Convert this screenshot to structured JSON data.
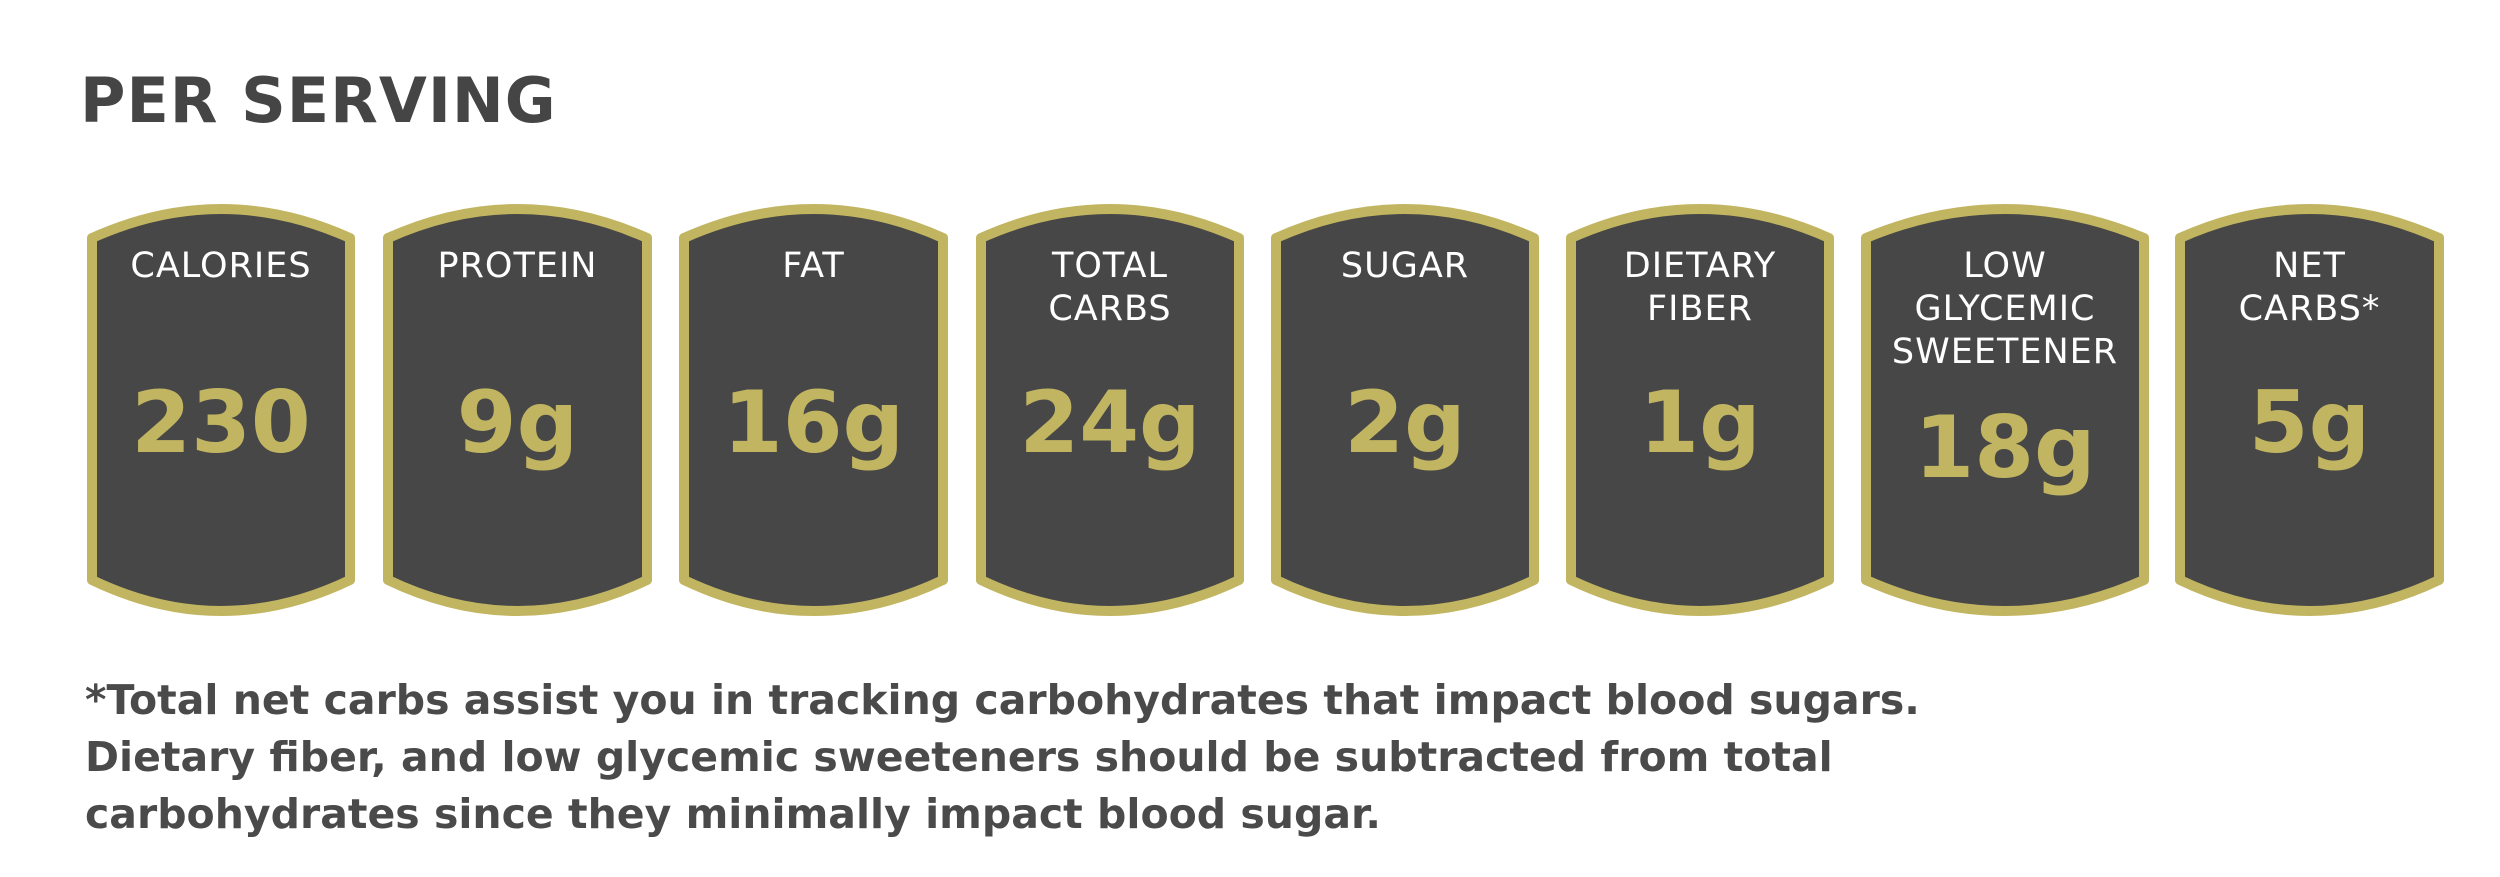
{
  "heading": "PER SERVING",
  "colors": {
    "tile_fill": "#474747",
    "tile_border": "#c2b561",
    "value_text": "#c2b561",
    "label_text": "#ffffff",
    "heading_text": "#454545"
  },
  "tiles": [
    {
      "label": "CALORIES",
      "value": "230"
    },
    {
      "label": "PROTEIN",
      "value": "9g"
    },
    {
      "label": "FAT",
      "value": "16g"
    },
    {
      "label": "TOTAL\nCARBS",
      "value": "24g"
    },
    {
      "label": "SUGAR",
      "value": "2g"
    },
    {
      "label": "DIETARY\nFIBER",
      "value": "1g"
    },
    {
      "label": "LOW\nGLYCEMIC\nSWEETENER",
      "value": "18g"
    },
    {
      "label": "NET\nCARBS*",
      "value": "5g"
    }
  ],
  "footnote": {
    "line1": "*Total net carbs assist you in tracking carbohydrates that impact blood sugars.",
    "line2": "Dietary fiber, and low glycemic sweeteners should be subtracted from total",
    "line3": "carbohydrates since they minimally impact blood sugar."
  }
}
